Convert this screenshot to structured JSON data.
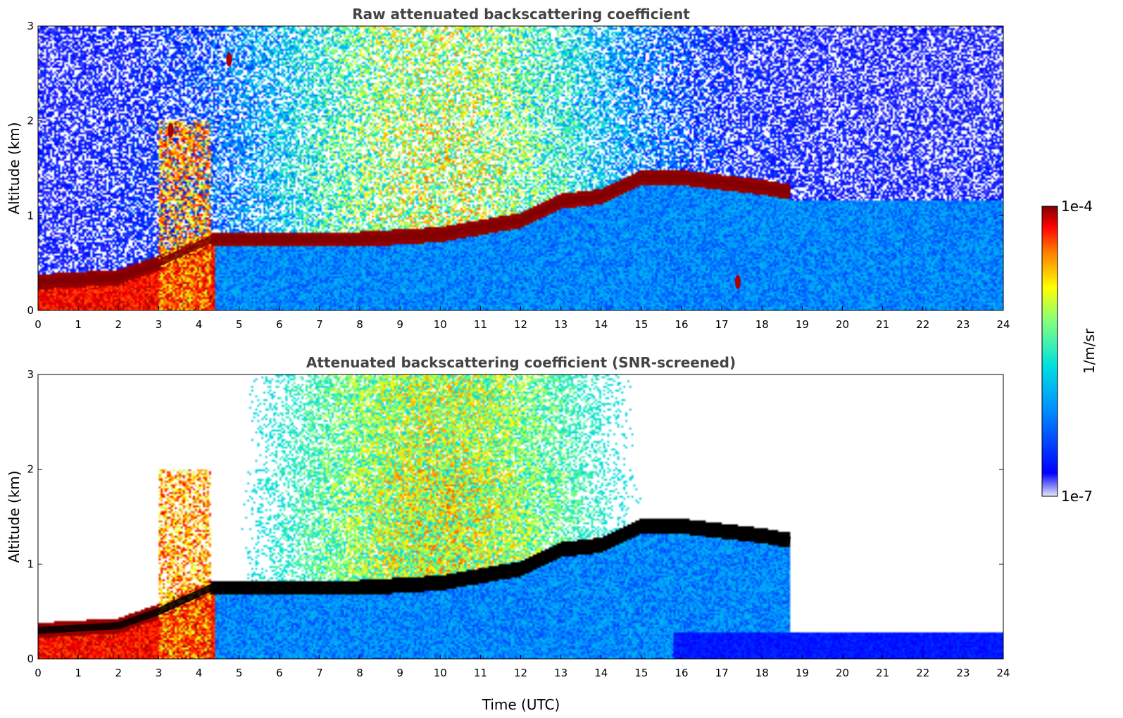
{
  "chart_data": [
    {
      "type": "heatmap",
      "title": "Raw attenuated backscattering coefficient",
      "xlabel": "",
      "ylabel": "Altitude (km)",
      "xlim": [
        0,
        24
      ],
      "ylim": [
        0,
        3
      ],
      "xticks": [
        "0",
        "1",
        "2",
        "3",
        "4",
        "5",
        "6",
        "7",
        "8",
        "9",
        "10",
        "11",
        "12",
        "13",
        "14",
        "15",
        "16",
        "17",
        "18",
        "19",
        "20",
        "21",
        "22",
        "23",
        "24"
      ],
      "yticks": [
        "0",
        "1",
        "2",
        "3"
      ],
      "boundary_layer_top_km": [
        [
          0,
          0.3
        ],
        [
          2,
          0.35
        ],
        [
          3,
          0.5
        ],
        [
          4.3,
          0.75
        ],
        [
          5,
          0.75
        ],
        [
          8,
          0.75
        ],
        [
          10,
          0.8
        ],
        [
          12,
          0.95
        ],
        [
          13,
          1.15
        ],
        [
          14,
          1.2
        ],
        [
          15,
          1.4
        ],
        [
          16,
          1.4
        ],
        [
          17,
          1.35
        ],
        [
          18,
          1.3
        ],
        [
          18.7,
          1.25
        ]
      ],
      "cloud_events": [
        {
          "time": 3.3,
          "altitude_km": 1.9
        },
        {
          "time": 4.75,
          "altitude_km": 2.65
        },
        {
          "time": 17.4,
          "altitude_km": 0.3
        }
      ]
    },
    {
      "type": "heatmap",
      "title": "Attenuated backscattering coefficient (SNR-screened)",
      "xlabel": "Time (UTC)",
      "ylabel": "Altitude (km)",
      "xlim": [
        0,
        24
      ],
      "ylim": [
        0,
        3
      ],
      "xticks": [
        "0",
        "1",
        "2",
        "3",
        "4",
        "5",
        "6",
        "7",
        "8",
        "9",
        "10",
        "11",
        "12",
        "13",
        "14",
        "15",
        "16",
        "17",
        "18",
        "19",
        "20",
        "21",
        "22",
        "23",
        "24"
      ],
      "yticks": [
        "0",
        "1",
        "2",
        "3"
      ],
      "boundary_layer_top_km": [
        [
          0,
          0.3
        ],
        [
          2,
          0.35
        ],
        [
          3,
          0.5
        ],
        [
          4.3,
          0.75
        ],
        [
          5,
          0.75
        ],
        [
          8,
          0.75
        ],
        [
          10,
          0.8
        ],
        [
          12,
          0.95
        ],
        [
          13,
          1.15
        ],
        [
          14,
          1.2
        ],
        [
          15,
          1.4
        ],
        [
          16,
          1.4
        ],
        [
          17,
          1.35
        ],
        [
          18,
          1.3
        ],
        [
          18.7,
          1.25
        ]
      ],
      "screened_floor_km": 0.28
    }
  ],
  "colorbar": {
    "label": "1/m/sr",
    "max_label": "1e-4",
    "min_label": "1e-7",
    "colormap": [
      "#e8e8f8",
      "#0000ff",
      "#0090ff",
      "#00e0e0",
      "#80ff80",
      "#ffff00",
      "#ff8000",
      "#ff0000",
      "#800000"
    ]
  }
}
